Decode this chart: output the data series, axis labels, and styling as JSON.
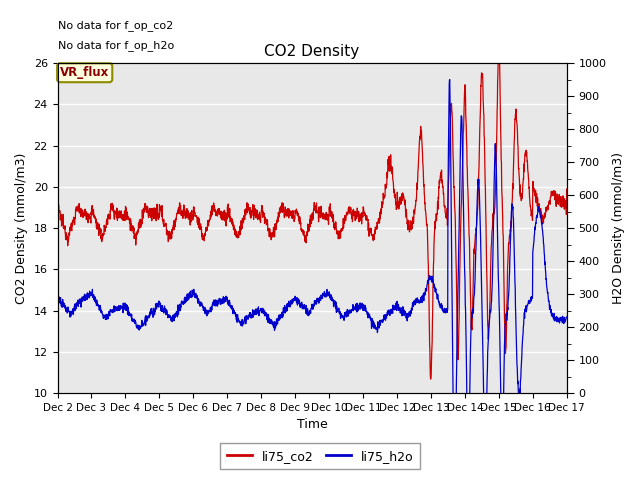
{
  "title": "CO2 Density",
  "xlabel": "Time",
  "ylabel_left": "CO2 Density (mmol/m3)",
  "ylabel_right": "H2O Density (mmol/m3)",
  "ylim_left": [
    10,
    26
  ],
  "ylim_right": [
    0,
    1000
  ],
  "yticks_left": [
    10,
    12,
    14,
    16,
    18,
    20,
    22,
    24,
    26
  ],
  "yticks_right": [
    0,
    100,
    200,
    300,
    400,
    500,
    600,
    700,
    800,
    900,
    1000
  ],
  "xtick_labels": [
    "Dec 2",
    "Dec 3",
    "Dec 4",
    "Dec 5",
    "Dec 6",
    "Dec 7",
    "Dec 8",
    "Dec 9",
    "Dec 10",
    "Dec 11",
    "Dec 12",
    "Dec 13",
    "Dec 14",
    "Dec 15",
    "Dec 16",
    "Dec 17"
  ],
  "annotations": [
    "No data for f_op_co2",
    "No data for f_op_h2o"
  ],
  "box_label": "VR_flux",
  "legend_entries": [
    "li75_co2",
    "li75_h2o"
  ],
  "legend_colors": [
    "#cc0000",
    "#0000cc"
  ],
  "co2_color": "#cc0000",
  "h2o_color": "#0000cc",
  "plot_bg_color": "#e8e8e8"
}
